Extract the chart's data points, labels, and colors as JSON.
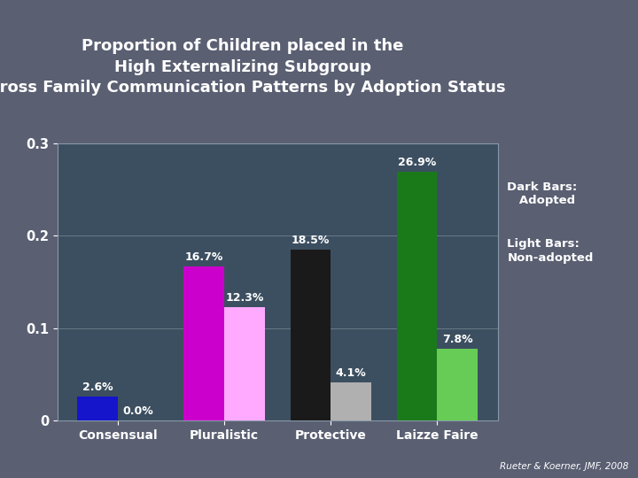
{
  "title": "Proportion of Children placed in the\nHigh Externalizing Subgroup\nacross Family Communication Patterns by Adoption Status",
  "categories": [
    "Consensual",
    "Pluralistic",
    "Protective",
    "Laizze Faire"
  ],
  "adopted_values": [
    0.026,
    0.167,
    0.185,
    0.269
  ],
  "nonadopted_values": [
    0.0,
    0.123,
    0.041,
    0.078
  ],
  "adopted_labels": [
    "2.6%",
    "16.7%",
    "18.5%",
    "26.9%"
  ],
  "nonadopted_labels": [
    "0.0%",
    "12.3%",
    "4.1%",
    "7.8%"
  ],
  "adopted_colors": [
    "#1515cc",
    "#cc00cc",
    "#1a1a1a",
    "#1a7a1a"
  ],
  "nonadopted_colors": [
    "#e0e0e0",
    "#ffaaff",
    "#b0b0b0",
    "#66cc55"
  ],
  "background_color": "#5a5f72",
  "plot_bg_color": "#3c4f60",
  "title_color": "#ffffff",
  "label_color": "#ffffff",
  "axis_label_color": "#ffffff",
  "tick_color": "#ffffff",
  "ylim": [
    0,
    0.3
  ],
  "yticks": [
    0,
    0.1,
    0.2,
    0.3
  ],
  "legend_text_dark": "Dark Bars:\n   Adopted",
  "legend_text_light": "Light Bars:\nNon-adopted",
  "footnote": "Rueter & Koerner, JMF, 2008",
  "bar_width": 0.38
}
